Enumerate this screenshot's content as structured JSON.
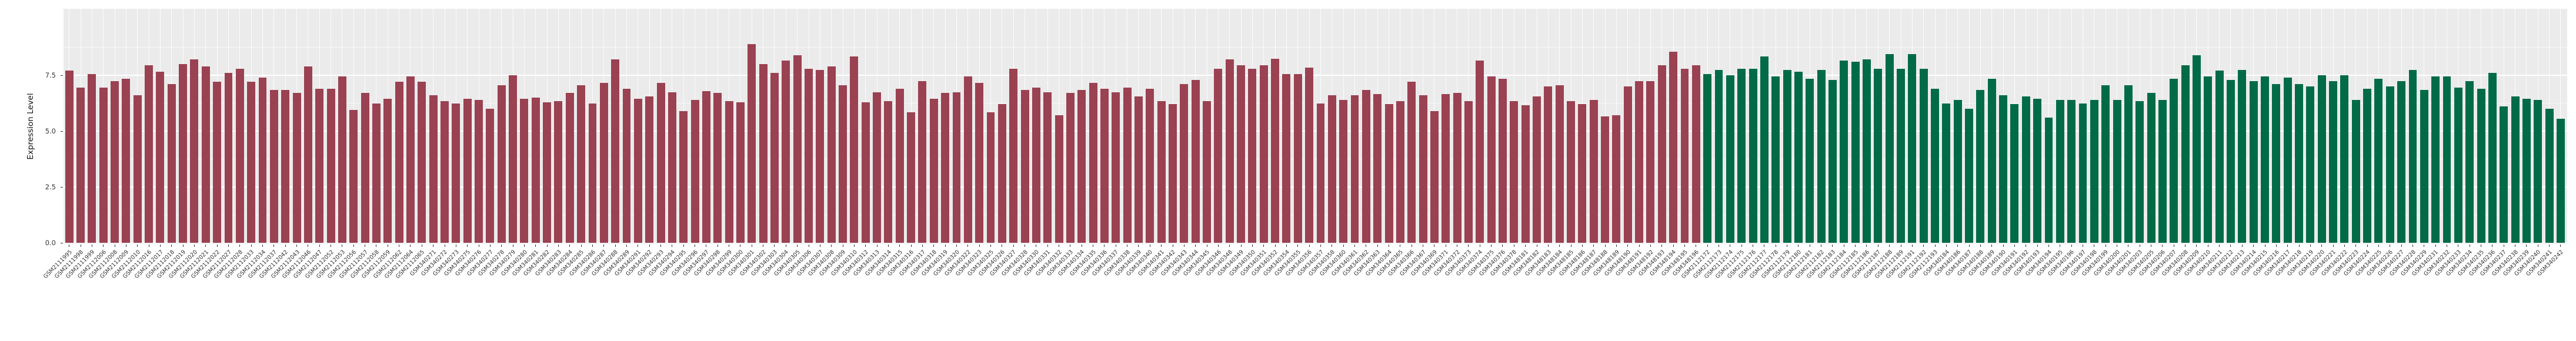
{
  "chart_data": {
    "type": "bar",
    "title": "",
    "xlabel": "",
    "ylabel": "Expression Level",
    "yticks": [
      "0.0",
      "2.5",
      "5.0",
      "7.5"
    ],
    "ylim": [
      0,
      10.4
    ],
    "grid": "on",
    "legend": "none",
    "panel_background": "#EBEBEB",
    "gridline_color": "#FFFFFF",
    "axis_text_color": "#333333",
    "groups": [
      {
        "name": "group-red",
        "color": "#9A4152",
        "samples": [
          "GSM2111995",
          "GSM2111998",
          "GSM2111999",
          "GSM2112006",
          "GSM2112008",
          "GSM2112009",
          "GSM2112010",
          "GSM2112016",
          "GSM2112017",
          "GSM2112018",
          "GSM2112019",
          "GSM2112020",
          "GSM2112021",
          "GSM2112022",
          "GSM2112027",
          "GSM2112028",
          "GSM2112033",
          "GSM2112034",
          "GSM2112037",
          "GSM2112042",
          "GSM2112043",
          "GSM2112046",
          "GSM2112047",
          "GSM2112052",
          "GSM2112053",
          "GSM2112056",
          "GSM2112057",
          "GSM2112058",
          "GSM2112059",
          "GSM2112062",
          "GSM2112064",
          "GSM2112065",
          "GSM340271",
          "GSM340272",
          "GSM340273",
          "GSM340275",
          "GSM340276",
          "GSM340277",
          "GSM340278",
          "GSM340279",
          "GSM340280",
          "GSM340281",
          "GSM340282",
          "GSM340283",
          "GSM340284",
          "GSM340285",
          "GSM340286",
          "GSM340287",
          "GSM340288",
          "GSM340289",
          "GSM340291",
          "GSM340292",
          "GSM340293",
          "GSM340294",
          "GSM340295",
          "GSM340296",
          "GSM340297",
          "GSM340298",
          "GSM340299",
          "GSM340300",
          "GSM340301",
          "GSM340302",
          "GSM340303",
          "GSM340304",
          "GSM340305",
          "GSM340306",
          "GSM340307",
          "GSM340308",
          "GSM340309",
          "GSM340310",
          "GSM340312",
          "GSM340313",
          "GSM340314",
          "GSM340315",
          "GSM340316",
          "GSM340317",
          "GSM340318",
          "GSM340319",
          "GSM340320",
          "GSM340322",
          "GSM340323",
          "GSM340325",
          "GSM340326",
          "GSM340327",
          "GSM340328",
          "GSM340330",
          "GSM340331",
          "GSM340332",
          "GSM340333",
          "GSM340334",
          "GSM340335",
          "GSM340336",
          "GSM340337",
          "GSM340338",
          "GSM340339",
          "GSM340340",
          "GSM340341",
          "GSM340342",
          "GSM340343",
          "GSM340344",
          "GSM340345",
          "GSM340346",
          "GSM340348",
          "GSM340349",
          "GSM340350",
          "GSM340351",
          "GSM340352",
          "GSM340354",
          "GSM340355",
          "GSM340356",
          "GSM340357",
          "GSM340358",
          "GSM340360",
          "GSM340361",
          "GSM340362",
          "GSM340363",
          "GSM340364",
          "GSM340365",
          "GSM340366",
          "GSM340367",
          "GSM340369",
          "GSM340371",
          "GSM340372",
          "GSM340373",
          "GSM340374",
          "GSM340375",
          "GSM340376",
          "GSM340378",
          "GSM348181",
          "GSM348182",
          "GSM348183",
          "GSM348184",
          "GSM348185",
          "GSM348186",
          "GSM348187",
          "GSM348188",
          "GSM348189",
          "GSM348190",
          "GSM348191",
          "GSM348192",
          "GSM348193",
          "GSM348194",
          "GSM348195",
          "GSM348196"
        ],
        "values": [
          7.7,
          6.95,
          7.55,
          6.95,
          7.25,
          7.35,
          6.6,
          7.95,
          7.65,
          7.1,
          8.0,
          8.2,
          7.9,
          7.2,
          7.6,
          7.8,
          7.2,
          7.4,
          6.85,
          6.85,
          6.7,
          7.9,
          6.9,
          6.9,
          7.45,
          5.95,
          6.7,
          6.25,
          6.45,
          7.2,
          7.45,
          7.2,
          6.6,
          6.35,
          6.25,
          6.45,
          6.4,
          6.0,
          7.05,
          7.5,
          6.45,
          6.5,
          6.3,
          6.35,
          6.7,
          7.05,
          6.25,
          7.15,
          8.2,
          6.9,
          6.45,
          6.55,
          7.15,
          6.75,
          5.9,
          6.4,
          6.8,
          6.7,
          6.35,
          6.3,
          8.9,
          8.0,
          7.6,
          8.15,
          8.4,
          7.8,
          7.75,
          7.9,
          7.05,
          8.35,
          6.3,
          6.75,
          6.35,
          6.9,
          5.85,
          7.25,
          6.45,
          6.7,
          6.75,
          7.45,
          7.15,
          5.85,
          6.2,
          7.8,
          6.85,
          6.95,
          6.75,
          5.7,
          6.7,
          6.85,
          7.15,
          6.9,
          6.75,
          6.95,
          6.55,
          6.9,
          6.35,
          6.2,
          7.1,
          7.3,
          6.35,
          7.8,
          8.2,
          7.95,
          7.8,
          7.95,
          8.25,
          7.55,
          7.55,
          7.85,
          6.25,
          6.6,
          6.4,
          6.6,
          6.85,
          6.65,
          6.2,
          6.35,
          7.2,
          6.6,
          5.9,
          6.65,
          6.7,
          6.35,
          8.15,
          7.45,
          7.35,
          6.35,
          6.15,
          6.55,
          7.0,
          7.05,
          6.35,
          6.2,
          6.4,
          5.65,
          5.7,
          7.0,
          7.25,
          7.25,
          7.95,
          8.55,
          7.8,
          7.95
        ]
      },
      {
        "name": "group-green",
        "color": "#016B47",
        "samples": [
          "GSM2112172",
          "GSM2112173",
          "GSM2112174",
          "GSM2112175",
          "GSM2112176",
          "GSM2112177",
          "GSM2112178",
          "GSM2112179",
          "GSM2112180",
          "GSM2112181",
          "GSM2112182",
          "GSM2112183",
          "GSM2112184",
          "GSM2112185",
          "GSM2112186",
          "GSM2112187",
          "GSM2112188",
          "GSM2112189",
          "GSM2112191",
          "GSM2112192",
          "GSM2112193",
          "GSM340184",
          "GSM340186",
          "GSM340187",
          "GSM340188",
          "GSM340189",
          "GSM340190",
          "GSM340191",
          "GSM340192",
          "GSM340193",
          "GSM340194",
          "GSM340195",
          "GSM340196",
          "GSM340197",
          "GSM340198",
          "GSM340199",
          "GSM340200",
          "GSM340201",
          "GSM340203",
          "GSM340205",
          "GSM340206",
          "GSM340207",
          "GSM340208",
          "GSM340209",
          "GSM340210",
          "GSM340211",
          "GSM340212",
          "GSM340213",
          "GSM340214",
          "GSM340215",
          "GSM340216",
          "GSM340217",
          "GSM340218",
          "GSM340219",
          "GSM340220",
          "GSM340221",
          "GSM340222",
          "GSM340223",
          "GSM340224",
          "GSM340225",
          "GSM340226",
          "GSM340227",
          "GSM340228",
          "GSM340229",
          "GSM340231",
          "GSM340232",
          "GSM340233",
          "GSM340234",
          "GSM340235",
          "GSM340236",
          "GSM340237",
          "GSM340238",
          "GSM340239",
          "GSM340240",
          "GSM340241",
          "GSM340242"
        ],
        "values": [
          7.55,
          7.75,
          7.5,
          7.8,
          7.8,
          8.35,
          7.45,
          7.75,
          7.65,
          7.35,
          7.75,
          7.3,
          8.15,
          8.1,
          8.2,
          7.8,
          8.45,
          7.8,
          8.45,
          7.8,
          6.9,
          6.25,
          6.4,
          6.0,
          6.85,
          7.35,
          6.6,
          6.2,
          6.55,
          6.45,
          5.6,
          6.4,
          6.4,
          6.25,
          6.4,
          7.05,
          6.4,
          7.05,
          6.35,
          6.7,
          6.4,
          7.35,
          7.95,
          8.4,
          7.45,
          7.7,
          7.3,
          7.75,
          7.25,
          7.45,
          7.1,
          7.4,
          7.1,
          7.0,
          7.5,
          7.25,
          7.5,
          6.4,
          6.9,
          7.35,
          7.0,
          7.25,
          7.75,
          6.85,
          7.45,
          7.45,
          6.95,
          7.25,
          6.9,
          7.6,
          6.1,
          6.55,
          6.45,
          6.4,
          6.0,
          5.55
        ]
      }
    ]
  }
}
